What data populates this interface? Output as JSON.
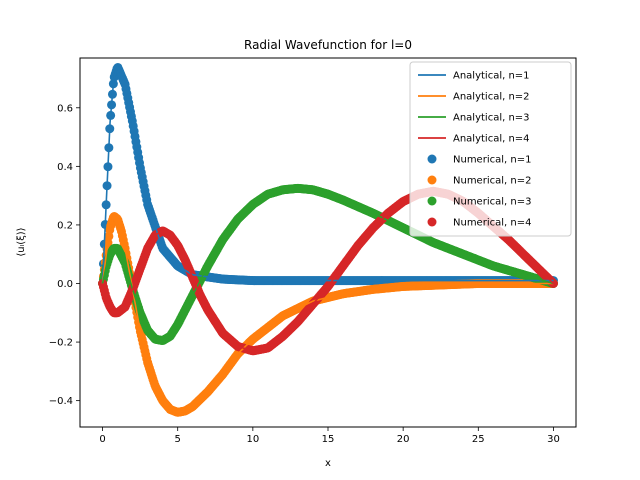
{
  "chart_data": {
    "type": "line",
    "title": "Radial Wavefunction for l=0",
    "xlabel": "x",
    "ylabel": "⟨uₗ(ξ)⟩",
    "xlim": [
      -1.5,
      31.5
    ],
    "ylim": [
      -0.49,
      0.77
    ],
    "xticks": [
      0,
      5,
      10,
      15,
      20,
      25,
      30
    ],
    "yticks": [
      -0.4,
      -0.2,
      0.0,
      0.2,
      0.4,
      0.6
    ],
    "ytick_labels": [
      "−0.4",
      "−0.2",
      "0.0",
      "0.2",
      "0.4",
      "0.6"
    ],
    "grid": false,
    "legend_position": "top-right",
    "legend": [
      "Analytical, n=1",
      "Analytical, n=2",
      "Analytical, n=3",
      "Analytical, n=4",
      "Numerical, n=1",
      "Numerical, n=2",
      "Numerical, n=3",
      "Numerical, n=4"
    ],
    "colors": [
      "#1f77b4",
      "#ff7f0e",
      "#2ca02c",
      "#d62728"
    ],
    "x_max": 30,
    "series": [
      {
        "name": "Analytical, n=1",
        "kind": "line",
        "color": "#1f77b4",
        "x": [
          0,
          0.25,
          0.5,
          0.75,
          1,
          1.5,
          2,
          2.5,
          3,
          4,
          5,
          6,
          8,
          10,
          15,
          20,
          25,
          30
        ],
        "y": [
          0,
          0.28,
          0.55,
          0.7,
          0.74,
          0.68,
          0.55,
          0.4,
          0.27,
          0.12,
          0.06,
          0.03,
          0.015,
          0.01,
          0.01,
          0.01,
          0.01,
          0.01
        ]
      },
      {
        "name": "Analytical, n=2",
        "kind": "line",
        "color": "#ff7f0e",
        "x": [
          0,
          0.25,
          0.5,
          0.75,
          1,
          1.25,
          1.5,
          2,
          2.5,
          3,
          3.5,
          4,
          4.5,
          5,
          5.5,
          6,
          7,
          8,
          9,
          10,
          12,
          14,
          16,
          18,
          20,
          25,
          30
        ],
        "y": [
          0,
          0.1,
          0.19,
          0.23,
          0.22,
          0.18,
          0.12,
          -0.02,
          -0.16,
          -0.27,
          -0.35,
          -0.4,
          -0.43,
          -0.44,
          -0.435,
          -0.42,
          -0.37,
          -0.31,
          -0.24,
          -0.19,
          -0.11,
          -0.06,
          -0.035,
          -0.02,
          -0.01,
          0,
          0
        ]
      },
      {
        "name": "Analytical, n=3",
        "kind": "line",
        "color": "#2ca02c",
        "x": [
          0,
          0.25,
          0.5,
          0.75,
          1,
          1.5,
          2,
          2.5,
          3,
          3.5,
          4,
          4.5,
          5,
          5.5,
          6,
          7,
          8,
          9,
          10,
          11,
          12,
          13,
          14,
          15,
          16,
          18,
          20,
          22,
          24,
          26,
          28,
          30
        ],
        "y": [
          0,
          0.06,
          0.1,
          0.12,
          0.12,
          0.07,
          -0.02,
          -0.1,
          -0.16,
          -0.19,
          -0.195,
          -0.18,
          -0.14,
          -0.09,
          -0.04,
          0.06,
          0.15,
          0.22,
          0.27,
          0.305,
          0.32,
          0.325,
          0.32,
          0.305,
          0.285,
          0.24,
          0.19,
          0.14,
          0.1,
          0.06,
          0.03,
          0
        ]
      },
      {
        "name": "Analytical, n=4",
        "kind": "line",
        "color": "#d62728",
        "x": [
          0,
          0.25,
          0.5,
          0.75,
          1,
          1.5,
          2,
          2.5,
          3,
          3.5,
          4,
          4.5,
          5,
          5.5,
          6,
          6.5,
          7,
          8,
          9,
          10,
          11,
          12,
          13,
          14,
          15,
          16,
          17,
          18,
          19,
          20,
          21,
          22,
          23,
          24,
          25,
          26,
          27,
          28,
          29,
          30
        ],
        "y": [
          0,
          -0.05,
          -0.08,
          -0.1,
          -0.1,
          -0.08,
          -0.02,
          0.05,
          0.12,
          0.165,
          0.18,
          0.165,
          0.13,
          0.08,
          0.02,
          -0.04,
          -0.09,
          -0.17,
          -0.215,
          -0.23,
          -0.22,
          -0.18,
          -0.13,
          -0.07,
          -0.01,
          0.06,
          0.13,
          0.19,
          0.24,
          0.28,
          0.305,
          0.315,
          0.305,
          0.28,
          0.24,
          0.195,
          0.15,
          0.1,
          0.05,
          0
        ]
      },
      {
        "name": "Numerical, n=1",
        "kind": "scatter",
        "color": "#1f77b4",
        "ref": 0
      },
      {
        "name": "Numerical, n=2",
        "kind": "scatter",
        "color": "#ff7f0e",
        "ref": 1
      },
      {
        "name": "Numerical, n=3",
        "kind": "scatter",
        "color": "#2ca02c",
        "ref": 2
      },
      {
        "name": "Numerical, n=4",
        "kind": "scatter",
        "color": "#d62728",
        "ref": 3
      }
    ]
  }
}
